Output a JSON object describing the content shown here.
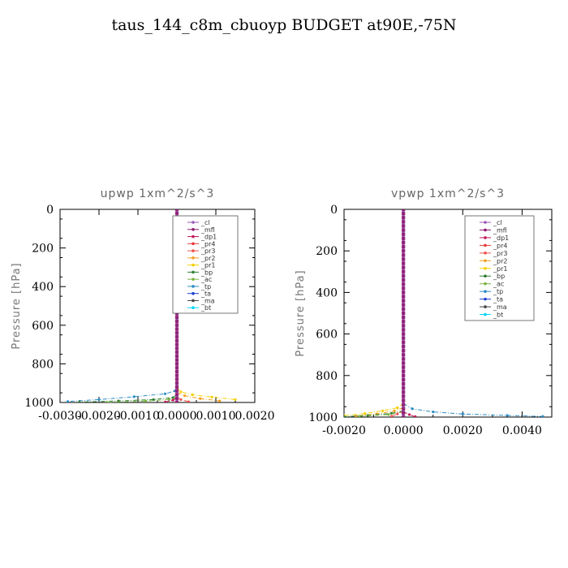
{
  "page": {
    "title": "taus_144_c8m_cbuoyp  BUDGET at90E,-75N"
  },
  "legend_entries": [
    {
      "label": "_cl",
      "color": "#9b59b6"
    },
    {
      "label": "_mfl",
      "color": "#8e1a6e"
    },
    {
      "label": "_dp1",
      "color": "#c2185b"
    },
    {
      "label": "_pr4",
      "color": "#e53935"
    },
    {
      "label": "_pr3",
      "color": "#ef5350"
    },
    {
      "label": "_pr2",
      "color": "#f0a020"
    },
    {
      "label": "_pr1",
      "color": "#f5d000"
    },
    {
      "label": "_bp",
      "color": "#2e7d32"
    },
    {
      "label": "_ac",
      "color": "#7cb342"
    },
    {
      "label": "_tp",
      "color": "#2b8cc4"
    },
    {
      "label": "_ta",
      "color": "#1e40d0"
    },
    {
      "label": "_ma",
      "color": "#444444"
    },
    {
      "label": "_bt",
      "color": "#00d5ff"
    }
  ],
  "chart_data": [
    {
      "type": "line",
      "title": "upwp   1xm^2/s^3",
      "ylabel": "Pressure [hPa]",
      "xlim": [
        -0.003,
        0.002
      ],
      "ylim": [
        1000,
        0
      ],
      "xticks": [
        -0.003,
        -0.002,
        -0.001,
        0.0,
        0.001,
        0.002
      ],
      "xtick_labels": [
        "-0.0030",
        "-0.0020",
        "-0.0010",
        "0.0000",
        "0.0010",
        "0.0020"
      ],
      "yticks": [
        0,
        200,
        400,
        600,
        800,
        1000
      ],
      "ytick_labels": [
        "0",
        "200",
        "400",
        "600",
        "800",
        "1000"
      ],
      "legend_position": "top-right",
      "series": [
        {
          "name": "_tp",
          "color": "#2b8cc4",
          "x": [
            0.0,
            -5e-05,
            -0.0003,
            -0.0011,
            -0.002,
            -0.0028
          ],
          "y": [
            920,
            940,
            955,
            970,
            985,
            995
          ]
        },
        {
          "name": "_bp",
          "color": "#2e7d32",
          "x": [
            0.0,
            -0.0001,
            -0.0006,
            -0.0015,
            -0.0025
          ],
          "y": [
            960,
            975,
            985,
            992,
            998
          ]
        },
        {
          "name": "_ac",
          "color": "#7cb342",
          "x": [
            0.0,
            -0.0002,
            -0.0008,
            -0.0018
          ],
          "y": [
            975,
            985,
            993,
            999
          ]
        },
        {
          "name": "_pr1",
          "color": "#f5d000",
          "x": [
            0.0,
            0.0001,
            0.0004,
            0.0009,
            0.0015
          ],
          "y": [
            920,
            945,
            960,
            972,
            985
          ]
        },
        {
          "name": "_pr2",
          "color": "#f0a020",
          "x": [
            0.0,
            0.0002,
            0.0006,
            0.0011
          ],
          "y": [
            950,
            965,
            980,
            992
          ]
        },
        {
          "name": "_pr3",
          "color": "#ef5350",
          "x": [
            0.0,
            0.0001,
            0.0003
          ],
          "y": [
            970,
            985,
            996
          ]
        },
        {
          "name": "_dp1",
          "color": "#c2185b",
          "x": [
            0.0,
            -0.0001,
            -0.0003
          ],
          "y": [
            975,
            988,
            998
          ]
        },
        {
          "name": "_mfl",
          "color": "#8e1a6e",
          "x": [
            0.0,
            0.0,
            0.0
          ],
          "y": [
            0,
            500,
            1000
          ]
        },
        {
          "name": "_cl",
          "color": "#9b59b6",
          "x": [
            0.0,
            0.0,
            0.0
          ],
          "y": [
            0,
            500,
            1000
          ]
        }
      ]
    },
    {
      "type": "line",
      "title": "vpwp   1xm^2/s^3",
      "ylabel": "Pressure [hPa]",
      "xlim": [
        -0.002,
        0.005
      ],
      "ylim": [
        1000,
        0
      ],
      "xticks": [
        -0.002,
        0.0,
        0.002,
        0.004
      ],
      "xtick_labels": [
        "-0.0020",
        "0.0000",
        "0.0020",
        "0.0040"
      ],
      "yticks": [
        0,
        200,
        400,
        600,
        800,
        1000
      ],
      "ytick_labels": [
        "0",
        "200",
        "400",
        "600",
        "800",
        "1000"
      ],
      "legend_position": "top-right",
      "series": [
        {
          "name": "_tp",
          "color": "#2b8cc4",
          "x": [
            0.0,
            0.0003,
            0.001,
            0.002,
            0.0035,
            0.0047
          ],
          "y": [
            935,
            960,
            975,
            985,
            992,
            997
          ]
        },
        {
          "name": "_pr1",
          "color": "#f5d000",
          "x": [
            0.0,
            -0.0002,
            -0.0007,
            -0.0013,
            -0.002
          ],
          "y": [
            935,
            955,
            970,
            983,
            993
          ]
        },
        {
          "name": "_pr2",
          "color": "#f0a020",
          "x": [
            0.0,
            -0.0003,
            -0.0009,
            -0.0016
          ],
          "y": [
            955,
            970,
            985,
            995
          ]
        },
        {
          "name": "_bp",
          "color": "#2e7d32",
          "x": [
            0.0,
            -0.0004,
            -0.0012,
            -0.002
          ],
          "y": [
            970,
            982,
            992,
            998
          ]
        },
        {
          "name": "_ac",
          "color": "#7cb342",
          "x": [
            0.0,
            -0.0005,
            -0.0015
          ],
          "y": [
            975,
            988,
            997
          ]
        },
        {
          "name": "_pr3",
          "color": "#ef5350",
          "x": [
            0.0,
            -0.0002,
            -0.0004
          ],
          "y": [
            970,
            985,
            996
          ]
        },
        {
          "name": "_dp1",
          "color": "#c2185b",
          "x": [
            0.0,
            0.0002,
            0.0004
          ],
          "y": [
            975,
            988,
            998
          ]
        },
        {
          "name": "_mfl",
          "color": "#8e1a6e",
          "x": [
            0.0,
            0.0,
            0.0
          ],
          "y": [
            0,
            500,
            1000
          ]
        },
        {
          "name": "_cl",
          "color": "#9b59b6",
          "x": [
            0.0,
            0.0,
            0.0
          ],
          "y": [
            0,
            500,
            1000
          ]
        }
      ]
    }
  ]
}
